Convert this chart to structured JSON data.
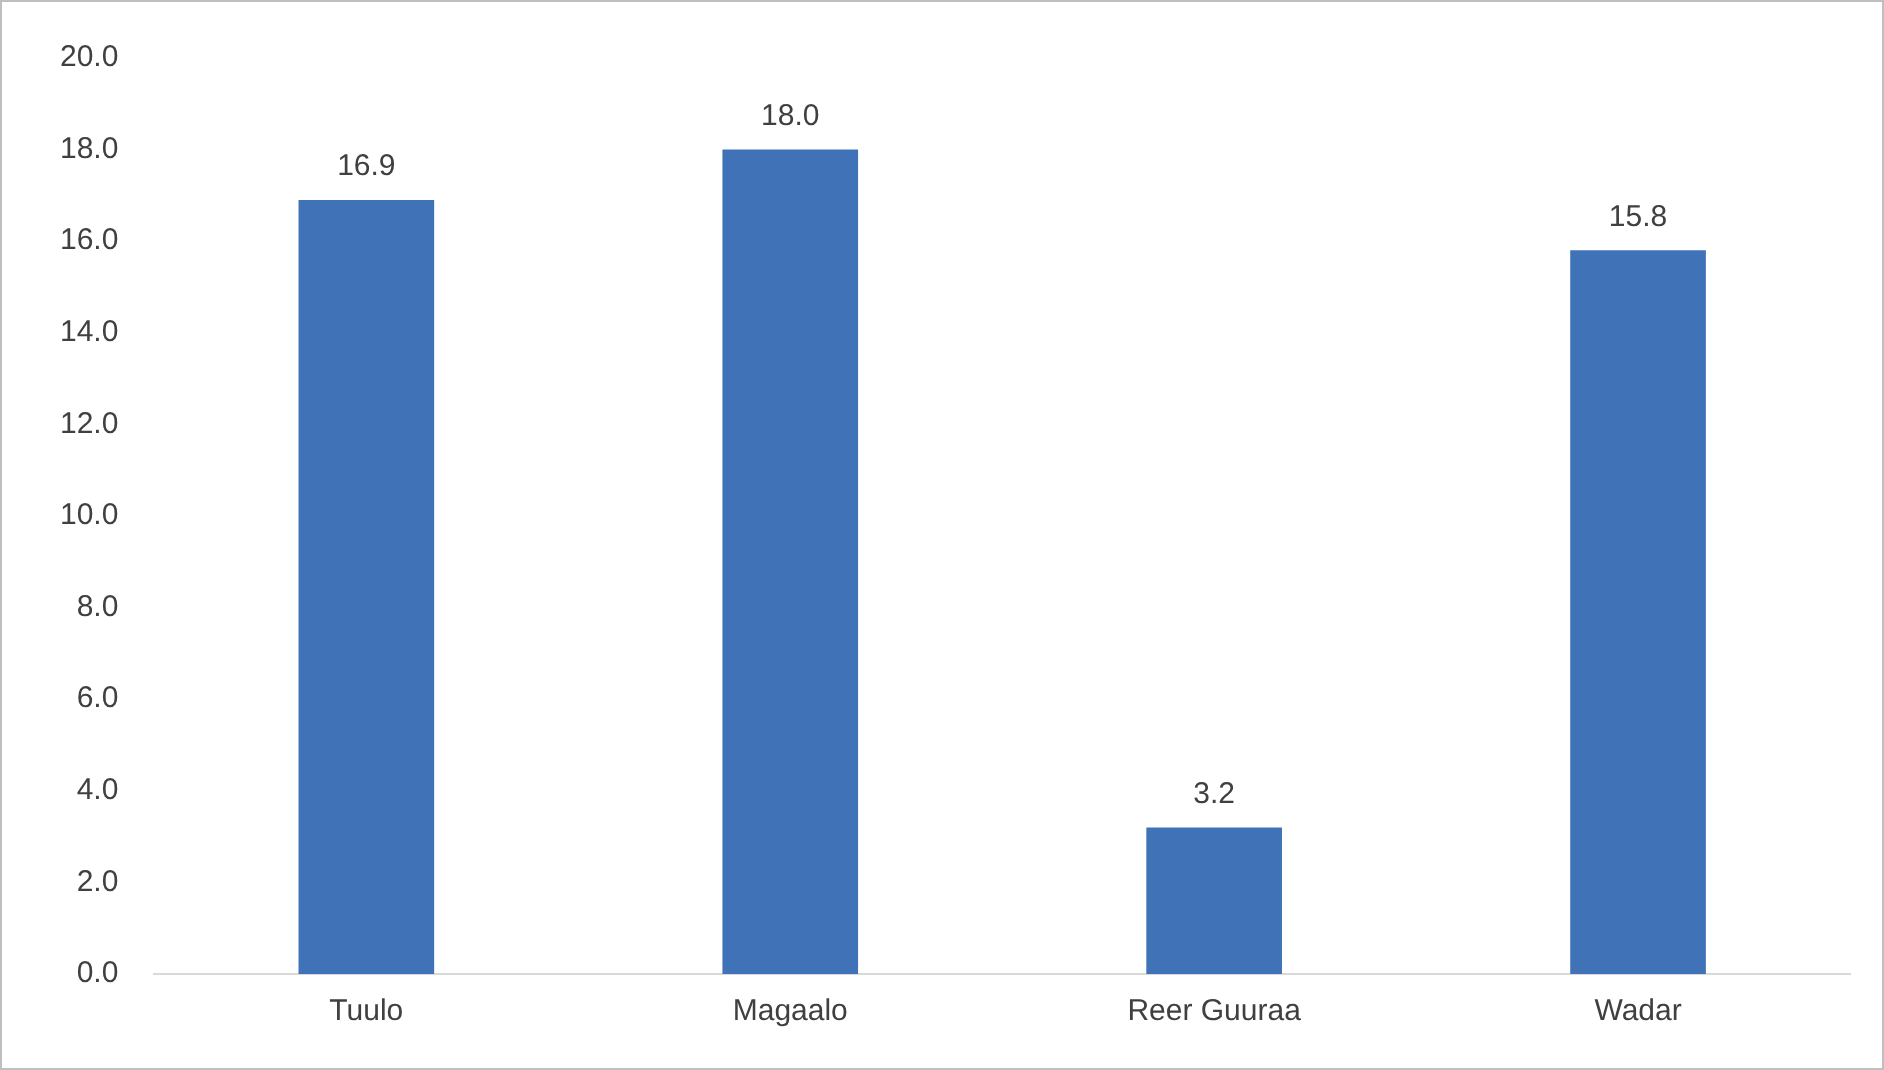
{
  "chart_data": {
    "type": "bar",
    "categories": [
      "Tuulo",
      "Magaalo",
      "Reer Guuraa",
      "Wadar"
    ],
    "values": [
      16.9,
      18.0,
      3.2,
      15.8
    ],
    "color": "#4072b8",
    "ylim": [
      0,
      20
    ],
    "yticks": [
      {
        "value": 0,
        "label": "0.0"
      },
      {
        "value": 2,
        "label": "2.0"
      },
      {
        "value": 4,
        "label": "4.0"
      },
      {
        "value": 6,
        "label": "6.0"
      },
      {
        "value": 8,
        "label": "8.0"
      },
      {
        "value": 10,
        "label": "10.0"
      },
      {
        "value": 12,
        "label": "12.0"
      },
      {
        "value": 14,
        "label": "14.0"
      },
      {
        "value": 16,
        "label": "16.0"
      },
      {
        "value": 18,
        "label": "18.0"
      },
      {
        "value": 20,
        "label": "20.0"
      }
    ],
    "value_labels": [
      "16.9",
      "18.0",
      "3.2",
      "15.8"
    ],
    "grid": false,
    "legend": false
  }
}
